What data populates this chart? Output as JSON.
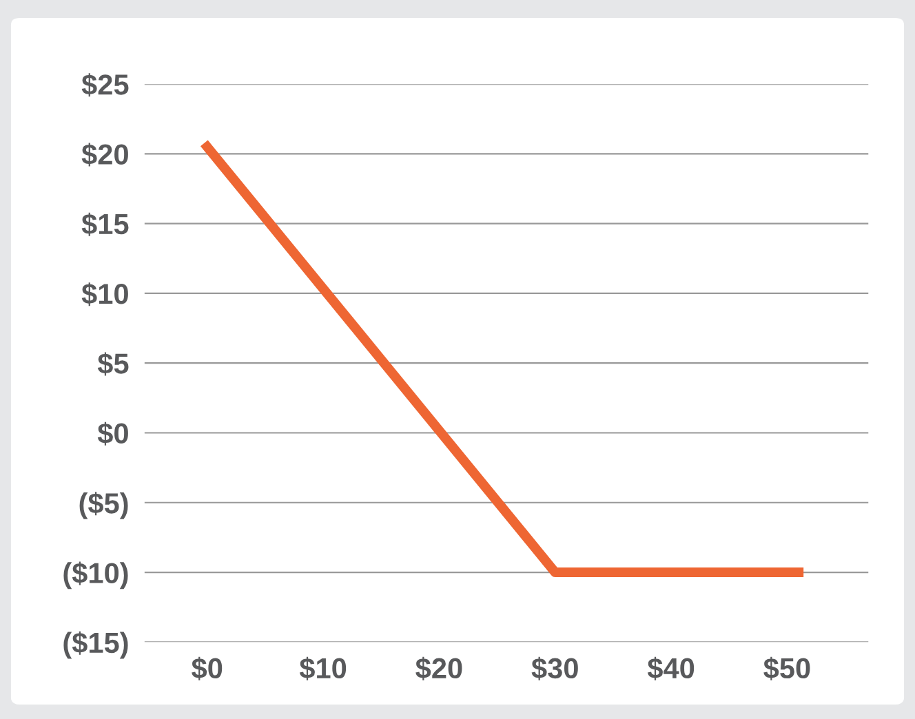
{
  "chart_data": {
    "type": "line",
    "x": [
      0,
      30,
      51
    ],
    "series": [
      {
        "color": "#ee6633",
        "values": [
          20.5,
          -10,
          -10
        ]
      }
    ],
    "xlim": [
      -5.4,
      57
    ],
    "ylim": [
      -15,
      25
    ],
    "xticks": [
      {
        "value": 0,
        "label": "$0"
      },
      {
        "value": 10,
        "label": "$10"
      },
      {
        "value": 20,
        "label": "$20"
      },
      {
        "value": 30,
        "label": "$30"
      },
      {
        "value": 40,
        "label": "$40"
      },
      {
        "value": 50,
        "label": "$50"
      }
    ],
    "yticks": [
      {
        "value": -15,
        "label": "($15)"
      },
      {
        "value": -10,
        "label": "($10)"
      },
      {
        "value": -5,
        "label": "($5)"
      },
      {
        "value": 0,
        "label": "$0"
      },
      {
        "value": 5,
        "label": "$5"
      },
      {
        "value": 10,
        "label": "$10"
      },
      {
        "value": 15,
        "label": "$15"
      },
      {
        "value": 20,
        "label": "$20"
      },
      {
        "value": 25,
        "label": "$25"
      }
    ],
    "grid": "y",
    "marker": "none",
    "line_style": "solid"
  }
}
